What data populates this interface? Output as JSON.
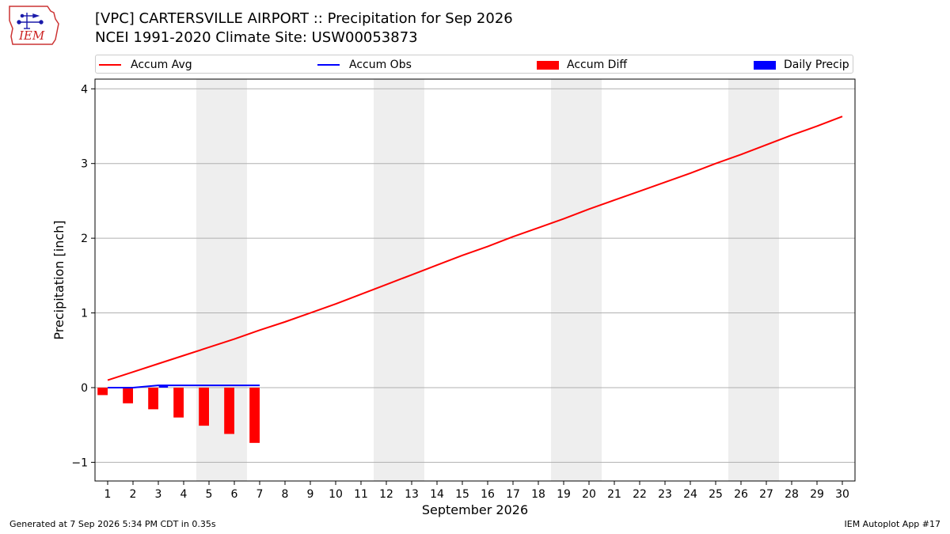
{
  "header": {
    "title_line1": "[VPC] CARTERSVILLE AIRPORT :: Precipitation for Sep 2026",
    "title_line2": "NCEI 1991-2020 Climate Site: USW00053873"
  },
  "logo": {
    "text": "IEM",
    "icon": "iem-logo-icon"
  },
  "legend": {
    "items": [
      {
        "label": "Accum Avg",
        "color": "#ff0000",
        "kind": "line"
      },
      {
        "label": "Accum Obs",
        "color": "#0000ff",
        "kind": "line"
      },
      {
        "label": "Accum Diff",
        "color": "#ff0000",
        "kind": "bar"
      },
      {
        "label": "Daily Precip",
        "color": "#0000ff",
        "kind": "bar"
      }
    ]
  },
  "chart_data": {
    "type": "line",
    "xlabel": "September 2026",
    "ylabel": "Precipitation [inch]",
    "x": [
      1,
      2,
      3,
      4,
      5,
      6,
      7,
      8,
      9,
      10,
      11,
      12,
      13,
      14,
      15,
      16,
      17,
      18,
      19,
      20,
      21,
      22,
      23,
      24,
      25,
      26,
      27,
      28,
      29,
      30
    ],
    "ylim": [
      -1.25,
      4.13
    ],
    "yticks": [
      -1,
      0,
      1,
      2,
      3,
      4
    ],
    "ytick_labels": [
      "−1",
      "0",
      "1",
      "2",
      "3",
      "4"
    ],
    "grid": true,
    "weekend_shading": [
      [
        5,
        6
      ],
      [
        12,
        13
      ],
      [
        19,
        20
      ],
      [
        26,
        27
      ]
    ],
    "series": [
      {
        "name": "Accum Avg",
        "type": "line",
        "color": "#ff0000",
        "x": [
          1,
          2,
          3,
          4,
          5,
          6,
          7,
          8,
          9,
          10,
          11,
          12,
          13,
          14,
          15,
          16,
          17,
          18,
          19,
          20,
          21,
          22,
          23,
          24,
          25,
          26,
          27,
          28,
          29,
          30
        ],
        "values": [
          0.1,
          0.21,
          0.32,
          0.43,
          0.54,
          0.65,
          0.77,
          0.88,
          1.0,
          1.12,
          1.25,
          1.38,
          1.51,
          1.64,
          1.77,
          1.89,
          2.02,
          2.14,
          2.26,
          2.39,
          2.51,
          2.63,
          2.75,
          2.87,
          3.0,
          3.12,
          3.25,
          3.38,
          3.5,
          3.63
        ]
      },
      {
        "name": "Accum Obs",
        "type": "line",
        "color": "#0000ff",
        "x": [
          1,
          2,
          3,
          4,
          5,
          6,
          7
        ],
        "values": [
          0.0,
          0.0,
          0.03,
          0.03,
          0.03,
          0.03,
          0.03
        ]
      },
      {
        "name": "Accum Diff",
        "type": "bar",
        "color": "#ff0000",
        "x": [
          1,
          2,
          3,
          4,
          5,
          6,
          7
        ],
        "values": [
          -0.1,
          -0.21,
          -0.29,
          -0.4,
          -0.51,
          -0.62,
          -0.74
        ]
      },
      {
        "name": "Daily Precip",
        "type": "bar",
        "color": "#0000ff",
        "x": [
          1,
          2,
          3,
          4,
          5,
          6,
          7
        ],
        "values": [
          0.0,
          0.0,
          0.03,
          0.0,
          0.0,
          0.0,
          0.0
        ]
      }
    ]
  },
  "footer": {
    "left": "Generated at 7 Sep 2026 5:34 PM CDT in 0.35s",
    "right": "IEM Autoplot App #17"
  }
}
